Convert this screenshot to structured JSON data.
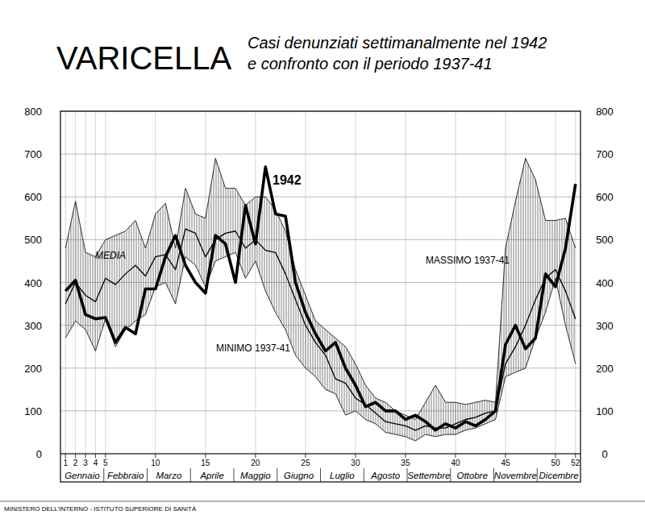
{
  "chart_data": {
    "type": "line",
    "title": "VARICELLA",
    "subtitle": [
      "Casi denunziati settimanalmente nel 1942",
      "e confronto con il periodo 1937-41"
    ],
    "source": "MINISTERO DELL'INTERNO - ISTITUTO SUPERIORE DI SANITÀ",
    "months": [
      "Gennaio",
      "Febbraio",
      "Marzo",
      "Aprile",
      "Maggio",
      "Giugno",
      "Luglio",
      "Agosto",
      "Settembre",
      "Ottobre",
      "Novembre",
      "Dicembre"
    ],
    "x": [
      1,
      2,
      3,
      4,
      5,
      6,
      7,
      8,
      9,
      10,
      11,
      12,
      13,
      14,
      15,
      16,
      17,
      18,
      19,
      20,
      21,
      22,
      23,
      24,
      25,
      26,
      27,
      28,
      29,
      30,
      31,
      32,
      33,
      34,
      35,
      36,
      37,
      38,
      39,
      40,
      41,
      42,
      43,
      44,
      45,
      46,
      47,
      48,
      49,
      50,
      51,
      52
    ],
    "xlim": [
      0.5,
      52.5
    ],
    "xticks": [
      1,
      2,
      3,
      4,
      5,
      10,
      15,
      20,
      25,
      30,
      35,
      40,
      45,
      50,
      52
    ],
    "ylim": [
      0,
      800
    ],
    "yticks": [
      0,
      100,
      200,
      300,
      400,
      500,
      600,
      700,
      800
    ],
    "grid": true,
    "series": [
      {
        "name": "1942",
        "color": "#000000",
        "line_style": "bold",
        "values": [
          380,
          405,
          325,
          315,
          318,
          260,
          295,
          280,
          385,
          385,
          460,
          510,
          440,
          400,
          375,
          510,
          490,
          400,
          580,
          490,
          670,
          560,
          555,
          400,
          330,
          280,
          240,
          260,
          200,
          160,
          110,
          120,
          100,
          100,
          80,
          90,
          75,
          55,
          70,
          60,
          75,
          65,
          80,
          100,
          255,
          300,
          245,
          270,
          420,
          390,
          480,
          630
        ]
      },
      {
        "name": "MEDIA",
        "color": "#000000",
        "line_style": "solid",
        "values": [
          350,
          400,
          370,
          355,
          410,
          395,
          420,
          440,
          415,
          460,
          465,
          430,
          525,
          515,
          460,
          500,
          515,
          520,
          480,
          500,
          475,
          470,
          420,
          360,
          300,
          260,
          230,
          175,
          165,
          130,
          115,
          95,
          75,
          70,
          65,
          55,
          65,
          60,
          60,
          70,
          80,
          85,
          95,
          100,
          210,
          250,
          300,
          360,
          410,
          430,
          380,
          315
        ]
      },
      {
        "name": "MASSIMO 1937-41",
        "color": "#000000",
        "line_style": "thin",
        "values": [
          480,
          590,
          470,
          460,
          500,
          510,
          520,
          545,
          480,
          560,
          585,
          480,
          620,
          560,
          550,
          690,
          620,
          620,
          580,
          600,
          600,
          570,
          520,
          430,
          370,
          310,
          290,
          270,
          250,
          210,
          160,
          130,
          120,
          100,
          90,
          80,
          120,
          160,
          120,
          120,
          115,
          120,
          125,
          120,
          480,
          590,
          690,
          640,
          545,
          545,
          550,
          480
        ]
      },
      {
        "name": "MINIMO 1937-41",
        "color": "#000000",
        "line_style": "thin",
        "values": [
          270,
          310,
          290,
          240,
          315,
          250,
          290,
          310,
          325,
          390,
          400,
          350,
          460,
          440,
          390,
          450,
          460,
          470,
          410,
          450,
          380,
          330,
          290,
          230,
          200,
          180,
          150,
          140,
          90,
          100,
          80,
          70,
          50,
          45,
          40,
          30,
          45,
          40,
          45,
          45,
          55,
          60,
          70,
          80,
          180,
          190,
          200,
          270,
          330,
          410,
          300,
          210
        ]
      }
    ]
  }
}
